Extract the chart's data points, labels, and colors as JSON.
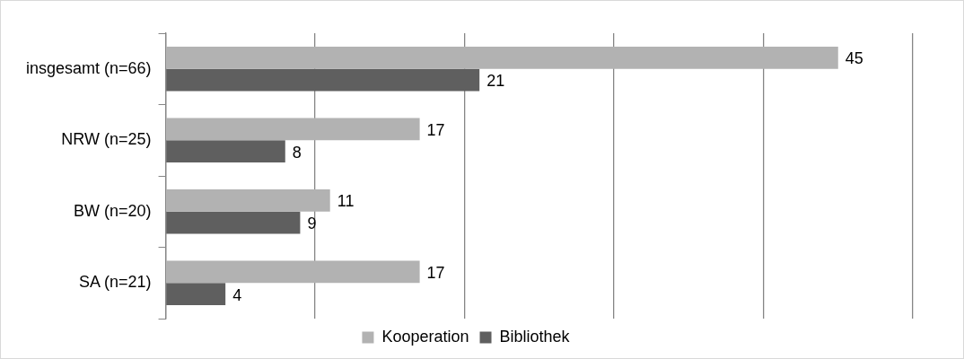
{
  "chart_data": {
    "type": "bar",
    "orientation": "horizontal",
    "categories": [
      "insgesamt (n=66)",
      "NRW (n=25)",
      "BW (n=20)",
      "SA (n=21)"
    ],
    "series": [
      {
        "name": "Kooperation",
        "color": "#b2b2b2",
        "values": [
          45,
          17,
          11,
          17
        ]
      },
      {
        "name": "Bibliothek",
        "color": "#5f5f5f",
        "values": [
          21,
          8,
          9,
          4
        ]
      }
    ],
    "xlim": [
      0,
      50
    ],
    "xticks": [
      {
        "value": 0,
        "label": null
      },
      {
        "value": 10,
        "label": null
      },
      {
        "value": 20,
        "label": null
      },
      {
        "value": 30,
        "label": null
      },
      {
        "value": 40,
        "label": null
      },
      {
        "value": 50,
        "label": null
      }
    ],
    "tick_labels": "y",
    "grid": "x",
    "legend": "bottom",
    "data_labels": true
  }
}
